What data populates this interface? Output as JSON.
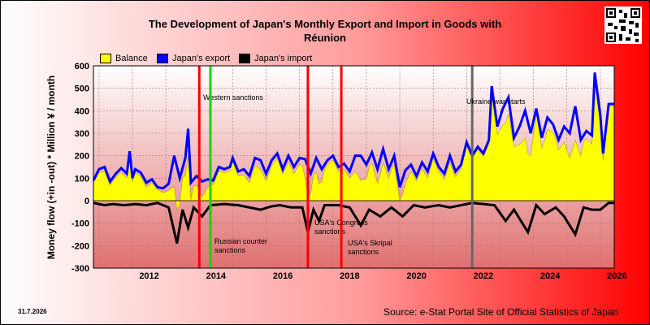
{
  "header": {
    "title_line1": "The Development of Japan's Monthly Export and Import in Goods with",
    "title_line2": "Réunion"
  },
  "footer": {
    "date": "31.7.2026",
    "source": "Source: e-Stat Portal Site of Official Statistics of Japan"
  },
  "colors": {
    "balance": "#ffff00",
    "export": "#0000ff",
    "import": "#000000",
    "event_red": "#ff0000",
    "event_green": "#00dd00",
    "event_gray": "#666666"
  },
  "chart_data": {
    "type": "area",
    "title": "The Development of Japan's Monthly Export and Import in Goods with Réunion",
    "ylabel": "Money flow (+in -out) * Million ¥ / month",
    "ylim": [
      -300,
      600
    ],
    "yticks": [
      600,
      500,
      400,
      300,
      200,
      100,
      0,
      -100,
      -200,
      -300
    ],
    "xlim": [
      "2010-11",
      "2026-06"
    ],
    "xticks": [
      "2012",
      "2014",
      "2016",
      "2018",
      "2020",
      "2022",
      "2024",
      "2026"
    ],
    "grid": true,
    "legend": [
      "Balance",
      "Japan's export",
      "Japan's import"
    ],
    "series": [
      {
        "name": "Japan's export",
        "points": [
          [
            "2010-11",
            90
          ],
          [
            "2011-01",
            140
          ],
          [
            "2011-03",
            150
          ],
          [
            "2011-05",
            85
          ],
          [
            "2011-07",
            120
          ],
          [
            "2011-09",
            145
          ],
          [
            "2011-11",
            120
          ],
          [
            "2011-12",
            220
          ],
          [
            "2012-01",
            100
          ],
          [
            "2012-02",
            140
          ],
          [
            "2012-04",
            125
          ],
          [
            "2012-06",
            80
          ],
          [
            "2012-08",
            95
          ],
          [
            "2012-10",
            60
          ],
          [
            "2012-12",
            55
          ],
          [
            "2013-02",
            75
          ],
          [
            "2013-04",
            200
          ],
          [
            "2013-06",
            100
          ],
          [
            "2013-08",
            190
          ],
          [
            "2013-09",
            320
          ],
          [
            "2013-10",
            80
          ],
          [
            "2013-12",
            110
          ],
          [
            "2014-02",
            85
          ],
          [
            "2014-04",
            95
          ],
          [
            "2014-06",
            90
          ],
          [
            "2014-08",
            150
          ],
          [
            "2014-10",
            140
          ],
          [
            "2014-12",
            150
          ],
          [
            "2015-01",
            190
          ],
          [
            "2015-03",
            130
          ],
          [
            "2015-05",
            140
          ],
          [
            "2015-07",
            110
          ],
          [
            "2015-09",
            190
          ],
          [
            "2015-11",
            180
          ],
          [
            "2016-01",
            120
          ],
          [
            "2016-03",
            180
          ],
          [
            "2016-05",
            210
          ],
          [
            "2016-07",
            140
          ],
          [
            "2016-09",
            200
          ],
          [
            "2016-11",
            150
          ],
          [
            "2017-01",
            190
          ],
          [
            "2017-03",
            185
          ],
          [
            "2017-05",
            120
          ],
          [
            "2017-07",
            190
          ],
          [
            "2017-09",
            140
          ],
          [
            "2017-11",
            180
          ],
          [
            "2018-01",
            200
          ],
          [
            "2018-03",
            150
          ],
          [
            "2018-05",
            165
          ],
          [
            "2018-07",
            130
          ],
          [
            "2018-09",
            200
          ],
          [
            "2018-11",
            200
          ],
          [
            "2019-01",
            160
          ],
          [
            "2019-03",
            215
          ],
          [
            "2019-05",
            140
          ],
          [
            "2019-07",
            230
          ],
          [
            "2019-09",
            140
          ],
          [
            "2019-11",
            200
          ],
          [
            "2020-01",
            60
          ],
          [
            "2020-03",
            135
          ],
          [
            "2020-05",
            160
          ],
          [
            "2020-07",
            110
          ],
          [
            "2020-09",
            170
          ],
          [
            "2020-11",
            130
          ],
          [
            "2021-01",
            210
          ],
          [
            "2021-03",
            150
          ],
          [
            "2021-05",
            120
          ],
          [
            "2021-07",
            200
          ],
          [
            "2021-09",
            130
          ],
          [
            "2021-11",
            160
          ],
          [
            "2022-01",
            260
          ],
          [
            "2022-03",
            200
          ],
          [
            "2022-05",
            240
          ],
          [
            "2022-07",
            210
          ],
          [
            "2022-09",
            270
          ],
          [
            "2022-10",
            510
          ],
          [
            "2022-12",
            330
          ],
          [
            "2023-02",
            410
          ],
          [
            "2023-04",
            460
          ],
          [
            "2023-06",
            280
          ],
          [
            "2023-08",
            330
          ],
          [
            "2023-10",
            400
          ],
          [
            "2023-12",
            300
          ],
          [
            "2024-02",
            410
          ],
          [
            "2024-04",
            280
          ],
          [
            "2024-06",
            370
          ],
          [
            "2024-08",
            340
          ],
          [
            "2024-10",
            270
          ],
          [
            "2024-12",
            330
          ],
          [
            "2025-02",
            300
          ],
          [
            "2025-04",
            420
          ],
          [
            "2025-06",
            270
          ],
          [
            "2025-08",
            310
          ],
          [
            "2025-10",
            290
          ],
          [
            "2025-11",
            570
          ],
          [
            "2026-01",
            380
          ],
          [
            "2026-02",
            210
          ],
          [
            "2026-04",
            430
          ]
        ]
      },
      {
        "name": "Japan's import",
        "points": [
          [
            "2010-11",
            -10
          ],
          [
            "2011-03",
            -20
          ],
          [
            "2011-06",
            -15
          ],
          [
            "2011-10",
            -20
          ],
          [
            "2012-02",
            -15
          ],
          [
            "2012-06",
            -20
          ],
          [
            "2012-10",
            -10
          ],
          [
            "2013-02",
            -30
          ],
          [
            "2013-05",
            -190
          ],
          [
            "2013-07",
            -40
          ],
          [
            "2013-09",
            -120
          ],
          [
            "2013-11",
            -30
          ],
          [
            "2014-02",
            -70
          ],
          [
            "2014-05",
            -20
          ],
          [
            "2014-10",
            -15
          ],
          [
            "2015-03",
            -20
          ],
          [
            "2015-07",
            -30
          ],
          [
            "2015-11",
            -40
          ],
          [
            "2016-03",
            -25
          ],
          [
            "2016-06",
            -20
          ],
          [
            "2016-10",
            -30
          ],
          [
            "2017-02",
            -30
          ],
          [
            "2017-04",
            -140
          ],
          [
            "2017-06",
            -40
          ],
          [
            "2017-08",
            -90
          ],
          [
            "2017-10",
            -20
          ],
          [
            "2018-03",
            -20
          ],
          [
            "2018-07",
            -30
          ],
          [
            "2018-11",
            -110
          ],
          [
            "2019-02",
            -40
          ],
          [
            "2019-06",
            -70
          ],
          [
            "2019-10",
            -30
          ],
          [
            "2020-02",
            -70
          ],
          [
            "2020-06",
            -20
          ],
          [
            "2020-10",
            -30
          ],
          [
            "2021-03",
            -20
          ],
          [
            "2021-07",
            -30
          ],
          [
            "2021-11",
            -20
          ],
          [
            "2022-03",
            -10
          ],
          [
            "2022-07",
            -15
          ],
          [
            "2022-11",
            -20
          ],
          [
            "2023-03",
            -90
          ],
          [
            "2023-06",
            -40
          ],
          [
            "2023-09",
            -100
          ],
          [
            "2023-11",
            -140
          ],
          [
            "2024-02",
            -20
          ],
          [
            "2024-05",
            -60
          ],
          [
            "2024-09",
            -30
          ],
          [
            "2024-12",
            -70
          ],
          [
            "2025-04",
            -150
          ],
          [
            "2025-07",
            -30
          ],
          [
            "2025-10",
            -40
          ],
          [
            "2026-01",
            -40
          ],
          [
            "2026-04",
            -10
          ]
        ]
      },
      {
        "name": "Balance",
        "note_source": "export + import",
        "derived": true
      }
    ],
    "annotations": [
      {
        "date": "2014-01",
        "label": "Western sanctions",
        "color": "#ff0000"
      },
      {
        "date": "2014-05",
        "label": "Russian counter sanctions",
        "color": "#00dd00"
      },
      {
        "date": "2017-04",
        "label": "USA's Congress sanctions",
        "color": "#ff0000"
      },
      {
        "date": "2018-04",
        "label": "USA's Skripal sanctions",
        "color": "#ff0000"
      },
      {
        "date": "2022-03",
        "label": "Ukraine war starts",
        "color": "#666666"
      }
    ]
  }
}
